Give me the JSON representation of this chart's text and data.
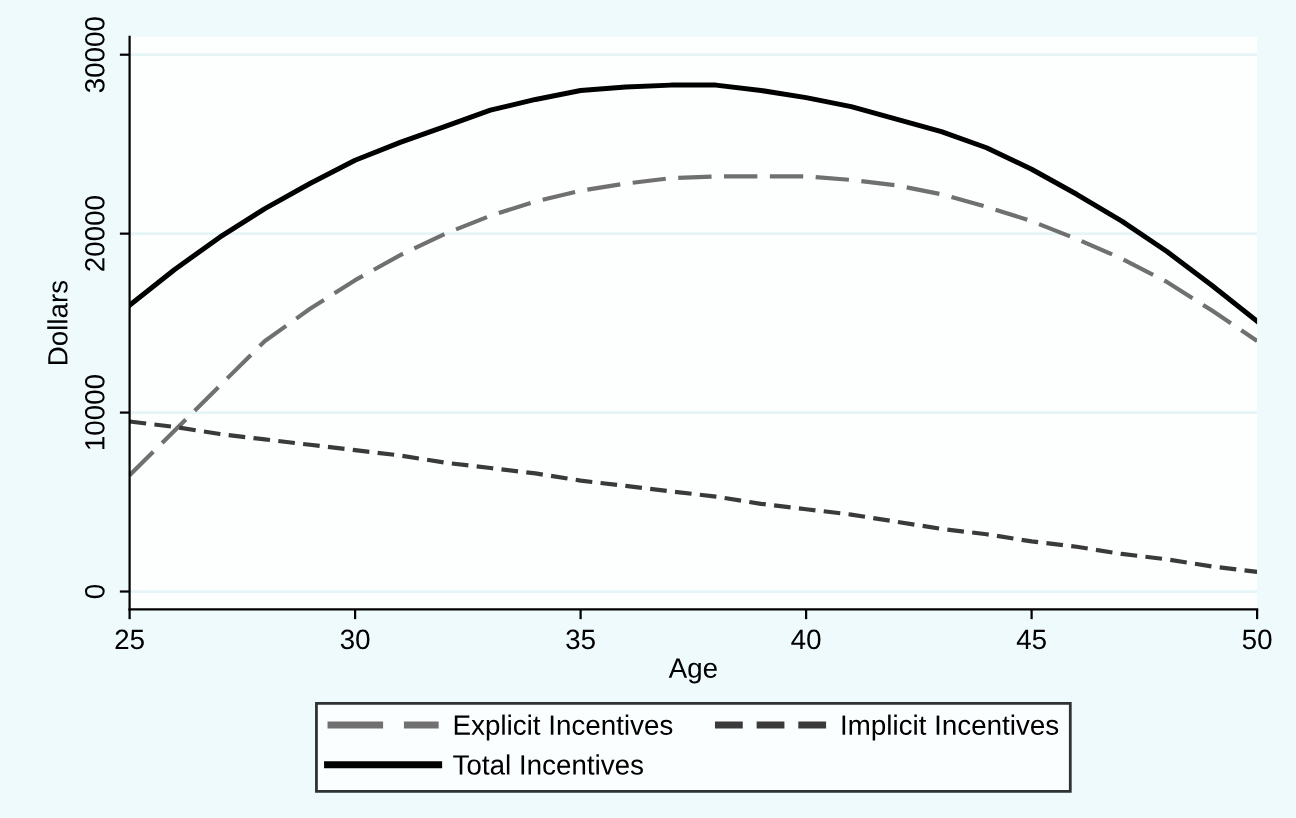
{
  "chart_data": {
    "type": "line",
    "xlabel": "Age",
    "ylabel": "Dollars",
    "x": [
      25,
      26,
      27,
      28,
      29,
      30,
      31,
      32,
      33,
      34,
      35,
      36,
      37,
      38,
      39,
      40,
      41,
      42,
      43,
      44,
      45,
      46,
      47,
      48,
      49,
      50
    ],
    "series": [
      {
        "name": "Explicit Incentives",
        "color": "#707070",
        "line_style": "dashed",
        "values": [
          6500,
          9000,
          11500,
          14000,
          15800,
          17400,
          18800,
          20000,
          21000,
          21800,
          22400,
          22800,
          23100,
          23200,
          23200,
          23200,
          23000,
          22700,
          22200,
          21500,
          20700,
          19700,
          18600,
          17300,
          15700,
          14000
        ]
      },
      {
        "name": "Implicit Incentives",
        "color": "#3a3a3a",
        "line_style": "dotted",
        "values": [
          9500,
          9200,
          8800,
          8500,
          8200,
          7900,
          7600,
          7200,
          6900,
          6600,
          6200,
          5900,
          5600,
          5300,
          4900,
          4600,
          4300,
          3900,
          3500,
          3200,
          2800,
          2500,
          2100,
          1800,
          1400,
          1100
        ]
      },
      {
        "name": "Total Incentives",
        "color": "#000000",
        "line_style": "solid",
        "values": [
          16000,
          18000,
          19800,
          21400,
          22800,
          24100,
          25100,
          26000,
          26900,
          27500,
          28000,
          28200,
          28300,
          28300,
          28000,
          27600,
          27100,
          26400,
          25700,
          24800,
          23600,
          22200,
          20700,
          19000,
          17100,
          15100
        ]
      }
    ],
    "xlim": [
      25,
      50
    ],
    "ylim": [
      -1000,
      31000
    ],
    "xticks": [
      25,
      30,
      35,
      40,
      45,
      50
    ],
    "yticks": [
      0,
      10000,
      20000,
      30000
    ],
    "grid": "y",
    "legend": "bottom",
    "marker": "none"
  }
}
